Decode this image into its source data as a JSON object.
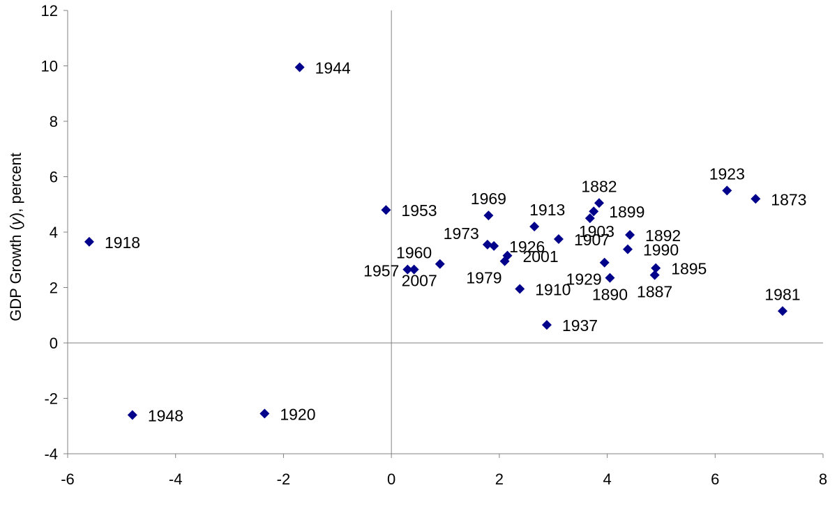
{
  "chart_data": {
    "type": "scatter",
    "title": "",
    "xlabel": "",
    "ylabel": "GDP Growth (y), percent",
    "ylabel_parts": [
      "GDP Growth (",
      "y",
      "), percent"
    ],
    "xlim": [
      -6,
      8
    ],
    "ylim": [
      -4,
      12
    ],
    "xticks": [
      -6,
      -4,
      -2,
      0,
      2,
      4,
      6,
      8
    ],
    "yticks": [
      -4,
      -2,
      0,
      2,
      4,
      6,
      8,
      10,
      12
    ],
    "grid": false,
    "legend": "none",
    "marker": "diamond",
    "marker_color": "#00008B",
    "points": [
      {
        "label": "1944",
        "x": -1.7,
        "y": 9.95,
        "label_side": "right"
      },
      {
        "label": "1918",
        "x": -5.6,
        "y": 3.65,
        "label_side": "right"
      },
      {
        "label": "1948",
        "x": -4.8,
        "y": -2.6,
        "label_side": "right"
      },
      {
        "label": "1920",
        "x": -2.35,
        "y": -2.55,
        "label_side": "right"
      },
      {
        "label": "1953",
        "x": -0.1,
        "y": 4.8,
        "label_side": "right"
      },
      {
        "label": "1957",
        "x": 0.3,
        "y": 2.65,
        "label_side": "left"
      },
      {
        "label": "1960",
        "x": 0.42,
        "y": 2.65,
        "label_side": "above"
      },
      {
        "label": "2007",
        "x": 0.9,
        "y": 2.85,
        "label_side": "below-left"
      },
      {
        "label": "1969",
        "x": 1.8,
        "y": 4.6,
        "label_side": "above"
      },
      {
        "label": "1973",
        "x": 1.78,
        "y": 3.55,
        "label_side": "above-left"
      },
      {
        "label": "1926",
        "x": 1.9,
        "y": 3.5,
        "label_side": "right"
      },
      {
        "label": "1979",
        "x": 2.1,
        "y": 2.95,
        "label_side": "below-left"
      },
      {
        "label": "2001",
        "x": 2.15,
        "y": 3.15,
        "label_side": "right"
      },
      {
        "label": "1910",
        "x": 2.38,
        "y": 1.95,
        "label_side": "right"
      },
      {
        "label": "1913",
        "x": 2.65,
        "y": 4.2,
        "label_side": "above-right"
      },
      {
        "label": "1937",
        "x": 2.88,
        "y": 0.65,
        "label_side": "right"
      },
      {
        "label": "1907",
        "x": 3.1,
        "y": 3.75,
        "label_side": "right"
      },
      {
        "label": "1929",
        "x": 3.95,
        "y": 2.9,
        "label_side": "below-left"
      },
      {
        "label": "1890",
        "x": 4.05,
        "y": 2.35,
        "label_side": "below"
      },
      {
        "label": "1903",
        "x": 3.68,
        "y": 4.5,
        "label_side": "below-right"
      },
      {
        "label": "1899",
        "x": 3.75,
        "y": 4.75,
        "label_side": "right"
      },
      {
        "label": "1882",
        "x": 3.85,
        "y": 5.05,
        "label_side": "above"
      },
      {
        "label": "1892",
        "x": 4.42,
        "y": 3.9,
        "label_side": "right"
      },
      {
        "label": "1990",
        "x": 4.38,
        "y": 3.38,
        "label_side": "right"
      },
      {
        "label": "1895",
        "x": 4.9,
        "y": 2.7,
        "label_side": "right"
      },
      {
        "label": "1887",
        "x": 4.88,
        "y": 2.45,
        "label_side": "below"
      },
      {
        "label": "1923",
        "x": 6.22,
        "y": 5.5,
        "label_side": "above"
      },
      {
        "label": "1873",
        "x": 6.75,
        "y": 5.2,
        "label_side": "right"
      },
      {
        "label": "1981",
        "x": 7.25,
        "y": 1.15,
        "label_side": "above"
      }
    ]
  }
}
